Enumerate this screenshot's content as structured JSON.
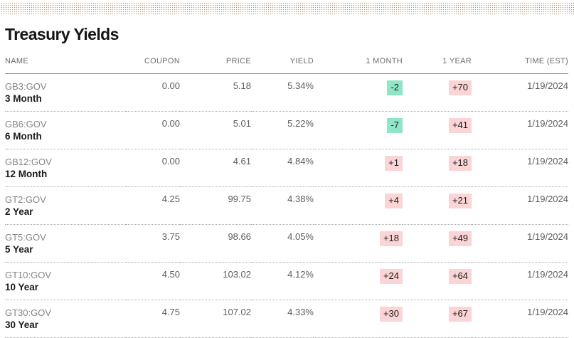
{
  "title": "Treasury Yields",
  "colors": {
    "badge_green": "#8fe5c6",
    "badge_pink": "#fbd4d5",
    "band_dot": "#cf9048",
    "header_rule": "#8f8f8f",
    "row_rule": "#aeaeae"
  },
  "table": {
    "headers": [
      "NAME",
      "COUPON",
      "PRICE",
      "YIELD",
      "1 MONTH",
      "1 YEAR",
      "TIME (EST)"
    ],
    "rows": [
      {
        "ticker": "GB3:GOV",
        "tenor": "3 Month",
        "coupon": "0.00",
        "price": "5.18",
        "yield": "5.34%",
        "one_month": "-2",
        "one_year": "+70",
        "time": "1/19/2024"
      },
      {
        "ticker": "GB6:GOV",
        "tenor": "6 Month",
        "coupon": "0.00",
        "price": "5.01",
        "yield": "5.22%",
        "one_month": "-7",
        "one_year": "+41",
        "time": "1/19/2024"
      },
      {
        "ticker": "GB12:GOV",
        "tenor": "12 Month",
        "coupon": "0.00",
        "price": "4.61",
        "yield": "4.84%",
        "one_month": "+1",
        "one_year": "+18",
        "time": "1/19/2024"
      },
      {
        "ticker": "GT2:GOV",
        "tenor": "2 Year",
        "coupon": "4.25",
        "price": "99.75",
        "yield": "4.38%",
        "one_month": "+4",
        "one_year": "+21",
        "time": "1/19/2024"
      },
      {
        "ticker": "GT5:GOV",
        "tenor": "5 Year",
        "coupon": "3.75",
        "price": "98.66",
        "yield": "4.05%",
        "one_month": "+18",
        "one_year": "+49",
        "time": "1/19/2024"
      },
      {
        "ticker": "GT10:GOV",
        "tenor": "10 Year",
        "coupon": "4.50",
        "price": "103.02",
        "yield": "4.12%",
        "one_month": "+24",
        "one_year": "+64",
        "time": "1/19/2024"
      },
      {
        "ticker": "GT30:GOV",
        "tenor": "30 Year",
        "coupon": "4.75",
        "price": "107.02",
        "yield": "4.33%",
        "one_month": "+30",
        "one_year": "+67",
        "time": "1/19/2024"
      }
    ]
  }
}
